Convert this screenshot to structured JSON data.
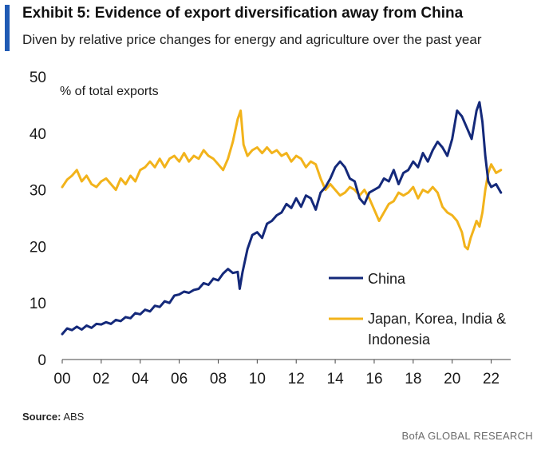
{
  "header": {
    "title": "Exhibit 5: Evidence of export diversification away from China",
    "subtitle": "Diven by relative price changes for energy and agriculture over the past year"
  },
  "footer": {
    "source_label": "Source:",
    "source_value": "ABS",
    "credit": "BofA GLOBAL RESEARCH"
  },
  "colors": {
    "accent": "#1f5ab4",
    "china": "#14297a",
    "japan": "#f2b31b"
  },
  "chart_data": {
    "type": "line",
    "title": "Exhibit 5: Evidence of export diversification away from China",
    "ylabel": "% of total exports",
    "xlabel": "",
    "ylim": [
      0,
      50
    ],
    "xlim": [
      2000,
      2023
    ],
    "yticks": [
      "0",
      "10",
      "20",
      "30",
      "40",
      "50"
    ],
    "xticks": [
      {
        "x": 2000,
        "label": "00"
      },
      {
        "x": 2002,
        "label": "02"
      },
      {
        "x": 2004,
        "label": "04"
      },
      {
        "x": 2006,
        "label": "06"
      },
      {
        "x": 2008,
        "label": "08"
      },
      {
        "x": 2010,
        "label": "10"
      },
      {
        "x": 2012,
        "label": "12"
      },
      {
        "x": 2014,
        "label": "14"
      },
      {
        "x": 2016,
        "label": "16"
      },
      {
        "x": 2018,
        "label": "18"
      },
      {
        "x": 2020,
        "label": "20"
      },
      {
        "x": 2022,
        "label": "22"
      }
    ],
    "legend": [
      "China",
      "Japan, Korea, India & Indonesia"
    ],
    "series": [
      {
        "name": "China",
        "color": "#14297a",
        "points": [
          [
            2000.0,
            4.5
          ],
          [
            2000.25,
            5.5
          ],
          [
            2000.5,
            5.2
          ],
          [
            2000.75,
            5.8
          ],
          [
            2001.0,
            5.3
          ],
          [
            2001.25,
            6.0
          ],
          [
            2001.5,
            5.6
          ],
          [
            2001.75,
            6.3
          ],
          [
            2002.0,
            6.2
          ],
          [
            2002.25,
            6.6
          ],
          [
            2002.5,
            6.3
          ],
          [
            2002.75,
            7.0
          ],
          [
            2003.0,
            6.8
          ],
          [
            2003.25,
            7.5
          ],
          [
            2003.5,
            7.3
          ],
          [
            2003.75,
            8.2
          ],
          [
            2004.0,
            8.0
          ],
          [
            2004.25,
            8.8
          ],
          [
            2004.5,
            8.5
          ],
          [
            2004.75,
            9.5
          ],
          [
            2005.0,
            9.3
          ],
          [
            2005.25,
            10.3
          ],
          [
            2005.5,
            10.0
          ],
          [
            2005.75,
            11.3
          ],
          [
            2006.0,
            11.5
          ],
          [
            2006.25,
            12.0
          ],
          [
            2006.5,
            11.8
          ],
          [
            2006.75,
            12.3
          ],
          [
            2007.0,
            12.5
          ],
          [
            2007.25,
            13.5
          ],
          [
            2007.5,
            13.2
          ],
          [
            2007.75,
            14.3
          ],
          [
            2008.0,
            14.0
          ],
          [
            2008.25,
            15.2
          ],
          [
            2008.5,
            16.0
          ],
          [
            2008.75,
            15.3
          ],
          [
            2009.0,
            15.5
          ],
          [
            2009.1,
            12.5
          ],
          [
            2009.25,
            15.5
          ],
          [
            2009.5,
            19.5
          ],
          [
            2009.75,
            22.0
          ],
          [
            2010.0,
            22.5
          ],
          [
            2010.25,
            21.5
          ],
          [
            2010.5,
            24.0
          ],
          [
            2010.75,
            24.5
          ],
          [
            2011.0,
            25.5
          ],
          [
            2011.25,
            26.0
          ],
          [
            2011.5,
            27.5
          ],
          [
            2011.75,
            26.8
          ],
          [
            2012.0,
            28.5
          ],
          [
            2012.25,
            27.0
          ],
          [
            2012.5,
            29.0
          ],
          [
            2012.75,
            28.5
          ],
          [
            2013.0,
            26.5
          ],
          [
            2013.25,
            29.5
          ],
          [
            2013.5,
            30.5
          ],
          [
            2013.75,
            32.0
          ],
          [
            2014.0,
            34.0
          ],
          [
            2014.25,
            35.0
          ],
          [
            2014.5,
            34.0
          ],
          [
            2014.75,
            32.0
          ],
          [
            2015.0,
            31.5
          ],
          [
            2015.25,
            28.5
          ],
          [
            2015.5,
            27.5
          ],
          [
            2015.75,
            29.5
          ],
          [
            2016.0,
            30.0
          ],
          [
            2016.25,
            30.5
          ],
          [
            2016.5,
            32.0
          ],
          [
            2016.75,
            31.5
          ],
          [
            2017.0,
            33.5
          ],
          [
            2017.25,
            31.0
          ],
          [
            2017.5,
            33.0
          ],
          [
            2017.75,
            33.5
          ],
          [
            2018.0,
            35.0
          ],
          [
            2018.25,
            34.0
          ],
          [
            2018.5,
            36.5
          ],
          [
            2018.75,
            35.0
          ],
          [
            2019.0,
            37.0
          ],
          [
            2019.25,
            38.5
          ],
          [
            2019.5,
            37.5
          ],
          [
            2019.75,
            36.0
          ],
          [
            2020.0,
            39.0
          ],
          [
            2020.25,
            44.0
          ],
          [
            2020.5,
            43.0
          ],
          [
            2020.75,
            41.0
          ],
          [
            2021.0,
            39.0
          ],
          [
            2021.25,
            44.0
          ],
          [
            2021.4,
            45.5
          ],
          [
            2021.55,
            42.0
          ],
          [
            2021.7,
            36.0
          ],
          [
            2021.85,
            31.5
          ],
          [
            2022.0,
            30.5
          ],
          [
            2022.25,
            31.0
          ],
          [
            2022.5,
            29.5
          ]
        ]
      },
      {
        "name": "Japan, Korea, India & Indonesia",
        "color": "#f2b31b",
        "points": [
          [
            2000.0,
            30.5
          ],
          [
            2000.25,
            31.8
          ],
          [
            2000.5,
            32.5
          ],
          [
            2000.75,
            33.5
          ],
          [
            2001.0,
            31.5
          ],
          [
            2001.25,
            32.5
          ],
          [
            2001.5,
            31.0
          ],
          [
            2001.75,
            30.5
          ],
          [
            2002.0,
            31.5
          ],
          [
            2002.25,
            32.0
          ],
          [
            2002.5,
            31.0
          ],
          [
            2002.75,
            30.0
          ],
          [
            2003.0,
            32.0
          ],
          [
            2003.25,
            31.0
          ],
          [
            2003.5,
            32.5
          ],
          [
            2003.75,
            31.5
          ],
          [
            2004.0,
            33.5
          ],
          [
            2004.25,
            34.0
          ],
          [
            2004.5,
            35.0
          ],
          [
            2004.75,
            34.0
          ],
          [
            2005.0,
            35.5
          ],
          [
            2005.25,
            34.0
          ],
          [
            2005.5,
            35.5
          ],
          [
            2005.75,
            36.0
          ],
          [
            2006.0,
            35.0
          ],
          [
            2006.25,
            36.5
          ],
          [
            2006.5,
            35.0
          ],
          [
            2006.75,
            36.0
          ],
          [
            2007.0,
            35.5
          ],
          [
            2007.25,
            37.0
          ],
          [
            2007.5,
            36.0
          ],
          [
            2007.75,
            35.5
          ],
          [
            2008.0,
            34.5
          ],
          [
            2008.25,
            33.5
          ],
          [
            2008.5,
            35.5
          ],
          [
            2008.75,
            38.5
          ],
          [
            2009.0,
            42.5
          ],
          [
            2009.15,
            44.0
          ],
          [
            2009.3,
            38.0
          ],
          [
            2009.5,
            36.0
          ],
          [
            2009.75,
            37.0
          ],
          [
            2010.0,
            37.5
          ],
          [
            2010.25,
            36.5
          ],
          [
            2010.5,
            37.5
          ],
          [
            2010.75,
            36.5
          ],
          [
            2011.0,
            37.0
          ],
          [
            2011.25,
            36.0
          ],
          [
            2011.5,
            36.5
          ],
          [
            2011.75,
            35.0
          ],
          [
            2012.0,
            36.0
          ],
          [
            2012.25,
            35.5
          ],
          [
            2012.5,
            34.0
          ],
          [
            2012.75,
            35.0
          ],
          [
            2013.0,
            34.5
          ],
          [
            2013.25,
            32.0
          ],
          [
            2013.5,
            30.0
          ],
          [
            2013.75,
            31.0
          ],
          [
            2014.0,
            30.0
          ],
          [
            2014.25,
            29.0
          ],
          [
            2014.5,
            29.5
          ],
          [
            2014.75,
            30.5
          ],
          [
            2015.0,
            30.0
          ],
          [
            2015.25,
            29.0
          ],
          [
            2015.5,
            30.0
          ],
          [
            2015.75,
            28.5
          ],
          [
            2016.0,
            26.5
          ],
          [
            2016.25,
            24.5
          ],
          [
            2016.5,
            26.0
          ],
          [
            2016.75,
            27.5
          ],
          [
            2017.0,
            28.0
          ],
          [
            2017.25,
            29.5
          ],
          [
            2017.5,
            29.0
          ],
          [
            2017.75,
            29.5
          ],
          [
            2018.0,
            30.5
          ],
          [
            2018.25,
            28.5
          ],
          [
            2018.5,
            30.0
          ],
          [
            2018.75,
            29.5
          ],
          [
            2019.0,
            30.5
          ],
          [
            2019.25,
            29.5
          ],
          [
            2019.5,
            27.0
          ],
          [
            2019.75,
            26.0
          ],
          [
            2020.0,
            25.5
          ],
          [
            2020.25,
            24.5
          ],
          [
            2020.5,
            22.5
          ],
          [
            2020.65,
            20.0
          ],
          [
            2020.8,
            19.5
          ],
          [
            2020.95,
            21.5
          ],
          [
            2021.1,
            23.0
          ],
          [
            2021.25,
            24.5
          ],
          [
            2021.4,
            23.5
          ],
          [
            2021.55,
            26.0
          ],
          [
            2021.7,
            30.0
          ],
          [
            2021.85,
            33.0
          ],
          [
            2022.0,
            34.5
          ],
          [
            2022.25,
            33.0
          ],
          [
            2022.5,
            33.5
          ]
        ]
      }
    ]
  }
}
